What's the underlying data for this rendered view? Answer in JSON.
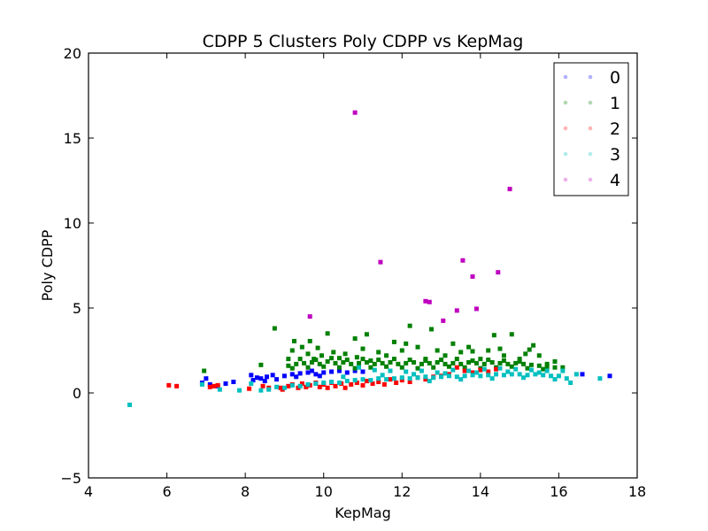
{
  "chart_data": {
    "type": "scatter",
    "title": "CDPP 5 Clusters Poly CDPP vs KepMag",
    "xlabel": "KepMag",
    "ylabel": "Poly CDPP",
    "xlim": [
      4,
      18
    ],
    "ylim": [
      -5,
      20
    ],
    "xticks": [
      4,
      6,
      8,
      10,
      12,
      14,
      16,
      18
    ],
    "yticks": [
      -5,
      0,
      5,
      10,
      15,
      20
    ],
    "grid": false,
    "legend_placement": "top-right",
    "series": [
      {
        "name": "0",
        "color": "#0000ff",
        "legend_color": "#b2b2ff",
        "points": [
          [
            6.9,
            0.6
          ],
          [
            7.0,
            0.85
          ],
          [
            7.1,
            0.5
          ],
          [
            7.3,
            0.4
          ],
          [
            7.5,
            0.55
          ],
          [
            7.7,
            0.65
          ],
          [
            8.2,
            0.75
          ],
          [
            8.3,
            0.9
          ],
          [
            8.4,
            0.85
          ],
          [
            8.55,
            0.95
          ],
          [
            8.7,
            1.05
          ],
          [
            8.8,
            0.8
          ],
          [
            8.5,
            0.7
          ],
          [
            8.15,
            1.05
          ],
          [
            9.0,
            1.0
          ],
          [
            9.2,
            1.1
          ],
          [
            9.4,
            1.15
          ],
          [
            9.3,
            0.95
          ],
          [
            9.6,
            1.2
          ],
          [
            9.8,
            1.1
          ],
          [
            10.0,
            1.2
          ],
          [
            10.2,
            1.25
          ],
          [
            10.4,
            1.3
          ],
          [
            10.6,
            1.2
          ],
          [
            10.8,
            1.3
          ],
          [
            11.0,
            1.25
          ],
          [
            9.7,
            1.3
          ],
          [
            9.9,
            1.0
          ],
          [
            16.6,
            1.1
          ],
          [
            17.3,
            1.0
          ]
        ]
      },
      {
        "name": "1",
        "color": "#008000",
        "legend_color": "#b2d8b2",
        "points": [
          [
            6.95,
            1.3
          ],
          [
            8.4,
            1.65
          ],
          [
            8.75,
            3.8
          ],
          [
            9.1,
            2.0
          ],
          [
            9.2,
            2.5
          ],
          [
            9.25,
            3.05
          ],
          [
            9.45,
            2.7
          ],
          [
            9.6,
            2.3
          ],
          [
            9.65,
            3.05
          ],
          [
            9.75,
            2.0
          ],
          [
            9.85,
            2.65
          ],
          [
            9.95,
            2.2
          ],
          [
            10.1,
            3.5
          ],
          [
            10.25,
            2.4
          ],
          [
            10.4,
            2.05
          ],
          [
            10.55,
            2.3
          ],
          [
            10.8,
            3.2
          ],
          [
            10.85,
            2.1
          ],
          [
            11.0,
            2.6
          ],
          [
            11.1,
            3.45
          ],
          [
            11.2,
            1.9
          ],
          [
            11.4,
            2.4
          ],
          [
            11.6,
            2.2
          ],
          [
            11.8,
            3.0
          ],
          [
            12.0,
            2.5
          ],
          [
            12.1,
            2.9
          ],
          [
            12.2,
            3.95
          ],
          [
            12.4,
            2.7
          ],
          [
            12.6,
            2.0
          ],
          [
            12.75,
            3.75
          ],
          [
            12.9,
            2.5
          ],
          [
            13.1,
            2.2
          ],
          [
            13.3,
            2.9
          ],
          [
            13.5,
            2.4
          ],
          [
            13.7,
            2.7
          ],
          [
            13.8,
            2.45
          ],
          [
            14.0,
            2.0
          ],
          [
            14.2,
            2.5
          ],
          [
            14.35,
            3.4
          ],
          [
            14.5,
            2.6
          ],
          [
            14.6,
            2.2
          ],
          [
            14.8,
            3.45
          ],
          [
            15.0,
            2.0
          ],
          [
            15.15,
            2.3
          ],
          [
            15.25,
            2.55
          ],
          [
            15.35,
            2.8
          ],
          [
            15.5,
            2.2
          ],
          [
            15.7,
            1.7
          ],
          [
            15.9,
            1.85
          ],
          [
            16.1,
            1.5
          ],
          [
            9.1,
            1.6
          ],
          [
            9.3,
            1.7
          ],
          [
            9.5,
            1.75
          ],
          [
            9.7,
            1.8
          ],
          [
            9.9,
            1.7
          ],
          [
            10.1,
            1.85
          ],
          [
            10.3,
            1.75
          ],
          [
            10.5,
            1.8
          ],
          [
            10.7,
            1.7
          ],
          [
            10.9,
            1.75
          ],
          [
            11.1,
            1.8
          ],
          [
            11.3,
            1.7
          ],
          [
            11.5,
            1.75
          ],
          [
            11.7,
            1.8
          ],
          [
            11.9,
            1.7
          ],
          [
            12.1,
            1.75
          ],
          [
            12.3,
            1.8
          ],
          [
            12.5,
            1.7
          ],
          [
            12.7,
            1.75
          ],
          [
            12.9,
            1.8
          ],
          [
            13.1,
            1.7
          ],
          [
            13.3,
            1.75
          ],
          [
            13.5,
            1.7
          ],
          [
            13.7,
            1.8
          ],
          [
            13.9,
            1.75
          ],
          [
            14.1,
            1.7
          ],
          [
            14.3,
            1.8
          ],
          [
            14.5,
            1.75
          ],
          [
            14.7,
            1.7
          ],
          [
            14.9,
            1.75
          ],
          [
            15.1,
            1.7
          ],
          [
            15.3,
            1.65
          ],
          [
            15.5,
            1.6
          ],
          [
            15.7,
            1.55
          ],
          [
            15.9,
            1.5
          ],
          [
            9.2,
            1.45
          ],
          [
            9.6,
            1.5
          ],
          [
            10.0,
            1.55
          ],
          [
            10.4,
            1.5
          ],
          [
            10.8,
            1.45
          ],
          [
            11.2,
            1.5
          ],
          [
            11.6,
            1.55
          ],
          [
            12.0,
            1.5
          ],
          [
            12.4,
            1.45
          ],
          [
            12.8,
            1.5
          ],
          [
            13.2,
            1.55
          ],
          [
            13.6,
            1.5
          ],
          [
            14.0,
            1.45
          ],
          [
            14.4,
            1.5
          ],
          [
            14.8,
            1.55
          ],
          [
            15.2,
            1.45
          ],
          [
            15.6,
            1.4
          ],
          [
            9.4,
            2.0
          ],
          [
            9.8,
            1.95
          ],
          [
            10.2,
            2.05
          ],
          [
            10.6,
            1.95
          ],
          [
            11.0,
            2.0
          ],
          [
            11.4,
            1.95
          ],
          [
            11.8,
            2.0
          ],
          [
            12.2,
            1.95
          ],
          [
            12.6,
            1.9
          ],
          [
            13.0,
            1.95
          ],
          [
            13.4,
            2.0
          ],
          [
            13.8,
            1.9
          ],
          [
            14.2,
            1.95
          ],
          [
            14.6,
            1.9
          ],
          [
            15.0,
            1.85
          ]
        ]
      },
      {
        "name": "2",
        "color": "#ff0000",
        "legend_color": "#ffb2b2",
        "points": [
          [
            6.05,
            0.45
          ],
          [
            6.25,
            0.4
          ],
          [
            7.1,
            0.35
          ],
          [
            7.2,
            0.4
          ],
          [
            7.3,
            0.45
          ],
          [
            8.1,
            0.25
          ],
          [
            8.45,
            0.4
          ],
          [
            8.6,
            0.3
          ],
          [
            8.9,
            0.3
          ],
          [
            8.95,
            0.2
          ],
          [
            9.1,
            0.4
          ],
          [
            9.2,
            0.5
          ],
          [
            9.35,
            0.3
          ],
          [
            9.45,
            0.55
          ],
          [
            9.55,
            0.35
          ],
          [
            9.65,
            0.45
          ],
          [
            9.8,
            0.6
          ],
          [
            9.9,
            0.35
          ],
          [
            10.0,
            0.5
          ],
          [
            10.1,
            0.3
          ],
          [
            10.2,
            0.6
          ],
          [
            10.3,
            0.4
          ],
          [
            10.45,
            0.55
          ],
          [
            10.55,
            0.3
          ],
          [
            10.7,
            0.5
          ],
          [
            10.85,
            0.6
          ],
          [
            11.0,
            0.45
          ],
          [
            11.1,
            0.7
          ],
          [
            11.25,
            0.55
          ],
          [
            11.4,
            0.65
          ],
          [
            11.55,
            0.5
          ],
          [
            11.7,
            0.8
          ],
          [
            11.85,
            0.6
          ],
          [
            12.0,
            0.75
          ],
          [
            12.2,
            0.65
          ],
          [
            12.4,
            0.9
          ],
          [
            12.6,
            0.8
          ],
          [
            12.8,
            0.95
          ],
          [
            13.0,
            1.0
          ],
          [
            13.2,
            1.1
          ],
          [
            13.4,
            1.5
          ],
          [
            13.6,
            1.3
          ],
          [
            13.8,
            1.2
          ],
          [
            14.0,
            1.35
          ],
          [
            14.2,
            1.25
          ],
          [
            14.4,
            1.4
          ]
        ]
      },
      {
        "name": "3",
        "color": "#00bfbf",
        "legend_color": "#b2ecec",
        "points": [
          [
            5.05,
            -0.7
          ],
          [
            6.9,
            0.5
          ],
          [
            7.35,
            0.2
          ],
          [
            7.85,
            0.15
          ],
          [
            8.15,
            0.55
          ],
          [
            8.4,
            0.15
          ],
          [
            8.6,
            0.2
          ],
          [
            8.8,
            0.35
          ],
          [
            9.0,
            0.3
          ],
          [
            9.2,
            0.45
          ],
          [
            9.4,
            0.4
          ],
          [
            9.6,
            0.5
          ],
          [
            9.8,
            0.55
          ],
          [
            10.0,
            0.6
          ],
          [
            10.2,
            0.65
          ],
          [
            10.4,
            0.6
          ],
          [
            10.6,
            0.7
          ],
          [
            10.8,
            0.75
          ],
          [
            11.0,
            0.8
          ],
          [
            11.2,
            0.75
          ],
          [
            11.4,
            0.85
          ],
          [
            11.6,
            0.8
          ],
          [
            11.8,
            0.85
          ],
          [
            12.0,
            0.9
          ],
          [
            12.2,
            0.85
          ],
          [
            12.4,
            0.9
          ],
          [
            12.6,
            0.95
          ],
          [
            12.8,
            0.9
          ],
          [
            13.0,
            0.95
          ],
          [
            13.2,
            1.0
          ],
          [
            13.4,
            0.95
          ],
          [
            13.6,
            1.0
          ],
          [
            13.8,
            1.05
          ],
          [
            14.0,
            1.0
          ],
          [
            14.2,
            1.05
          ],
          [
            14.4,
            1.1
          ],
          [
            14.6,
            1.05
          ],
          [
            14.8,
            1.1
          ],
          [
            15.0,
            1.1
          ],
          [
            15.2,
            1.05
          ],
          [
            15.4,
            1.1
          ],
          [
            15.6,
            1.05
          ],
          [
            15.8,
            1.0
          ],
          [
            16.0,
            1.0
          ],
          [
            16.2,
            0.85
          ],
          [
            16.3,
            0.6
          ],
          [
            16.45,
            1.1
          ],
          [
            17.05,
            0.85
          ],
          [
            10.9,
            1.5
          ],
          [
            11.3,
            1.35
          ],
          [
            11.7,
            1.3
          ],
          [
            12.1,
            1.25
          ],
          [
            12.5,
            1.3
          ],
          [
            12.9,
            1.2
          ],
          [
            13.3,
            1.35
          ],
          [
            13.7,
            1.3
          ],
          [
            14.1,
            1.4
          ],
          [
            14.5,
            1.45
          ],
          [
            14.9,
            1.4
          ],
          [
            15.3,
            1.35
          ],
          [
            15.7,
            1.3
          ],
          [
            16.1,
            1.3
          ],
          [
            10.5,
            0.95
          ],
          [
            11.5,
            1.05
          ],
          [
            12.3,
            1.1
          ],
          [
            13.1,
            1.15
          ],
          [
            13.9,
            1.2
          ],
          [
            14.7,
            1.25
          ],
          [
            15.5,
            1.2
          ],
          [
            12.7,
            0.7
          ],
          [
            13.5,
            0.8
          ],
          [
            14.3,
            0.85
          ],
          [
            15.1,
            0.9
          ],
          [
            15.9,
            0.8
          ]
        ]
      },
      {
        "name": "4",
        "color": "#bf00bf",
        "legend_color": "#ecb2ec",
        "points": [
          [
            9.65,
            4.5
          ],
          [
            10.8,
            16.5
          ],
          [
            11.45,
            7.7
          ],
          [
            12.6,
            5.4
          ],
          [
            12.7,
            5.35
          ],
          [
            13.05,
            4.25
          ],
          [
            13.4,
            4.85
          ],
          [
            13.55,
            7.8
          ],
          [
            13.8,
            6.85
          ],
          [
            13.9,
            4.95
          ],
          [
            14.45,
            7.1
          ],
          [
            14.75,
            12.0
          ]
        ]
      }
    ]
  }
}
